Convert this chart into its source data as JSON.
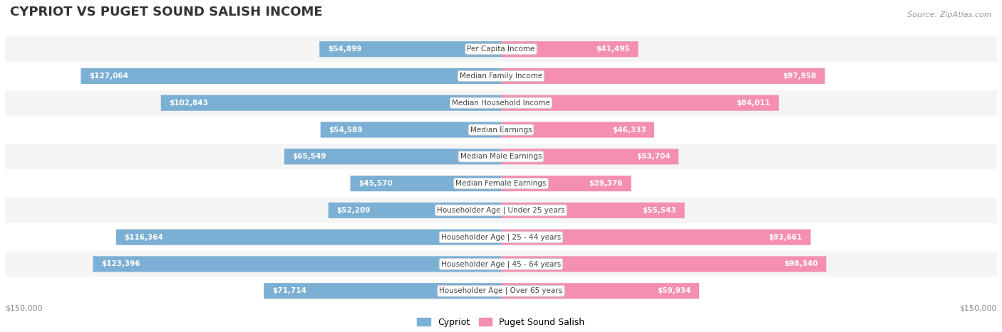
{
  "title": "CYPRIOT VS PUGET SOUND SALISH INCOME",
  "source": "Source: ZipAtlas.com",
  "categories": [
    "Per Capita Income",
    "Median Family Income",
    "Median Household Income",
    "Median Earnings",
    "Median Male Earnings",
    "Median Female Earnings",
    "Householder Age | Under 25 years",
    "Householder Age | 25 - 44 years",
    "Householder Age | 45 - 64 years",
    "Householder Age | Over 65 years"
  ],
  "cypriot_values": [
    54899,
    127064,
    102843,
    54589,
    65549,
    45570,
    52209,
    116364,
    123396,
    71714
  ],
  "salish_values": [
    41495,
    97958,
    84011,
    46333,
    53704,
    39376,
    55543,
    93661,
    98340,
    59934
  ],
  "cypriot_color": "#7bafd4",
  "salish_color": "#f48fb1",
  "max_value": 150000,
  "background_color": "#ffffff",
  "row_bg_light": "#f5f5f5",
  "row_bg_white": "#ffffff",
  "legend_cypriot": "Cypriot",
  "legend_salish": "Puget Sound Salish",
  "xlabel_left": "$150,000",
  "xlabel_right": "$150,000",
  "inside_threshold": 27000
}
